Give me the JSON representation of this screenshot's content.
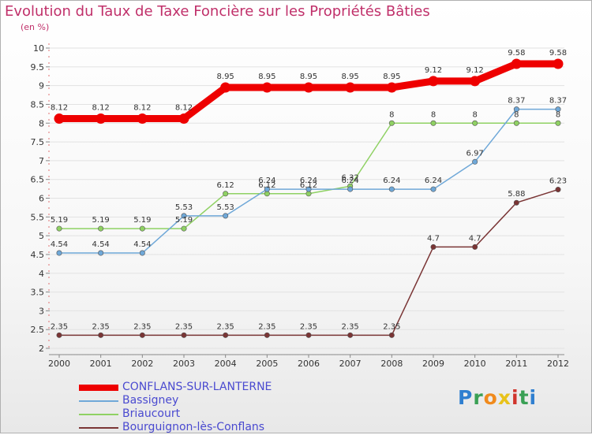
{
  "chart_data": {
    "type": "line",
    "title": "Evolution du Taux de Taxe Foncière sur les Propriétés Bâties",
    "subtitle": "(en %)",
    "categories": [
      "2000",
      "2001",
      "2002",
      "2003",
      "2004",
      "2005",
      "2006",
      "2007",
      "2008",
      "2009",
      "2010",
      "2011",
      "2012"
    ],
    "ylim": [
      2,
      10
    ],
    "yticks": [
      "2",
      "2.5",
      "3",
      "3.5",
      "4",
      "4.5",
      "5",
      "5.5",
      "6",
      "6.5",
      "7",
      "7.5",
      "8",
      "8.5",
      "9",
      "9.5",
      "10"
    ],
    "series": [
      {
        "name": "CONFLANS-SUR-LANTERNE",
        "color": "#ee0000",
        "values": [
          8.12,
          8.12,
          8.12,
          8.12,
          8.95,
          8.95,
          8.95,
          8.95,
          8.95,
          9.12,
          9.12,
          9.58,
          9.58
        ],
        "labels": [
          "8.12",
          "8.12",
          "8.12",
          "8.12",
          "8.95",
          "8.95",
          "8.95",
          "8.95",
          "8.95",
          "9.12",
          "9.12",
          "9.58",
          "9.58"
        ]
      },
      {
        "name": "Bassigney",
        "color": "#6fa8d8",
        "values": [
          4.54,
          4.54,
          4.54,
          5.53,
          5.53,
          6.24,
          6.24,
          6.24,
          6.24,
          6.24,
          6.97,
          8.37,
          8.37
        ],
        "labels": [
          "4.54",
          "4.54",
          "4.54",
          "5.53",
          "5.53",
          "6.24",
          "6.24",
          "6.24",
          "6.24",
          "6.24",
          "6.97",
          "8.37",
          "8.37"
        ]
      },
      {
        "name": "Briaucourt",
        "color": "#8fd163",
        "values": [
          5.19,
          5.19,
          5.19,
          5.19,
          6.12,
          6.12,
          6.12,
          6.32,
          8,
          8,
          8,
          8,
          8
        ],
        "labels": [
          "5.19",
          "5.19",
          "5.19",
          "5.19",
          "6.12",
          "6.12",
          "6.12",
          "6.32",
          "8",
          "8",
          "8",
          "8",
          "8"
        ]
      },
      {
        "name": "Bourguignon-lès-Conflans",
        "color": "#7a3535",
        "values": [
          2.35,
          2.35,
          2.35,
          2.35,
          2.35,
          2.35,
          2.35,
          2.35,
          2.35,
          4.7,
          4.7,
          5.88,
          6.23
        ],
        "labels": [
          "2.35",
          "2.35",
          "2.35",
          "2.35",
          "2.35",
          "2.35",
          "2.35",
          "2.35",
          "2.35",
          "4.7",
          "4.7",
          "5.88",
          "6.23"
        ]
      }
    ]
  },
  "logo": {
    "text": "Proxiti",
    "letters": [
      "P",
      "r",
      "o",
      "x",
      "i",
      "t",
      "i"
    ]
  }
}
